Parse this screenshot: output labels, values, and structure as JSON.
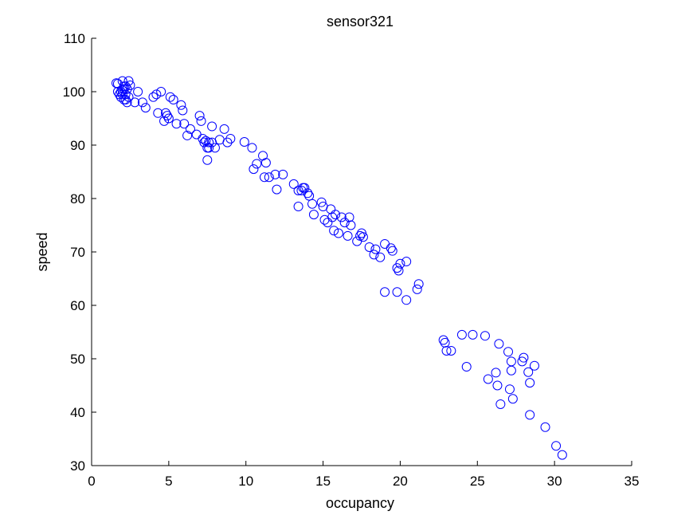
{
  "chart_data": {
    "type": "scatter",
    "title": "sensor321",
    "xlabel": "occupancy",
    "ylabel": "speed",
    "xlim": [
      0,
      35
    ],
    "ylim": [
      30,
      110
    ],
    "xticks": [
      0,
      5,
      10,
      15,
      20,
      25,
      30,
      35
    ],
    "yticks": [
      30,
      40,
      50,
      60,
      70,
      80,
      90,
      100,
      110
    ],
    "grid": false,
    "marker": "open-circle",
    "marker_color": "#0000ff",
    "series": [
      {
        "x": [
          1.6,
          1.7,
          1.9,
          2.0,
          2.1,
          2.2,
          2.3,
          2.4,
          1.8,
          2.0,
          2.2,
          2.5,
          1.9,
          2.1,
          2.3,
          2.0,
          2.2,
          1.7,
          2.4,
          2.1,
          2.8,
          3.0,
          3.3,
          3.5,
          4.0,
          4.3,
          4.5,
          4.8,
          5.0,
          5.1,
          5.5,
          5.8,
          6.0,
          4.2,
          4.7,
          4.9,
          5.3,
          5.9,
          6.2,
          6.4,
          6.8,
          7.0,
          7.2,
          7.4,
          7.6,
          7.8,
          7.1,
          7.5,
          7.5,
          7.6,
          8.0,
          8.3,
          8.6,
          8.8,
          9.0,
          7.3,
          7.8,
          9.9,
          10.4,
          10.5,
          10.7,
          11.1,
          11.2,
          11.3,
          11.5,
          11.9,
          12.0,
          12.4,
          13.1,
          13.4,
          13.6,
          13.7,
          13.8,
          14.0,
          14.1,
          14.3,
          14.4,
          13.4,
          14.9,
          15.0,
          15.1,
          15.3,
          15.5,
          15.6,
          15.7,
          15.8,
          16.0,
          16.2,
          16.4,
          16.6,
          16.7,
          16.8,
          17.2,
          17.4,
          17.5,
          17.6,
          18.0,
          18.3,
          18.4,
          18.7,
          19.0,
          19.4,
          19.5,
          19.8,
          19.9,
          20.0,
          20.4,
          20.4,
          21.1,
          21.2,
          19.0,
          19.8,
          22.8,
          22.9,
          23.0,
          23.3,
          24.0,
          24.3,
          24.7,
          25.5,
          25.7,
          26.2,
          26.3,
          26.4,
          26.5,
          27.0,
          27.1,
          27.2,
          27.2,
          27.3,
          27.9,
          28.0,
          28.3,
          28.4,
          28.4,
          28.7,
          29.4,
          30.1,
          30.5
        ],
        "y": [
          101.6,
          101.5,
          100.0,
          102.0,
          101.0,
          99.5,
          100.5,
          102.0,
          99.5,
          100.2,
          98.5,
          101.2,
          99.0,
          100.5,
          98.0,
          99.5,
          101.0,
          100.0,
          99.0,
          98.5,
          98.0,
          100.0,
          98.0,
          97.0,
          99.0,
          96.0,
          100.0,
          96.0,
          95.0,
          99.0,
          94.0,
          97.5,
          94.0,
          99.5,
          94.5,
          95.5,
          98.5,
          96.5,
          91.8,
          93.0,
          92.0,
          95.5,
          91.2,
          90.8,
          89.5,
          93.5,
          94.5,
          89.5,
          87.2,
          90.5,
          89.5,
          91.0,
          93.0,
          90.5,
          91.2,
          90.5,
          90.5,
          90.6,
          89.5,
          85.5,
          86.5,
          88.0,
          84.0,
          86.7,
          84.0,
          84.5,
          81.7,
          84.5,
          82.7,
          78.5,
          81.5,
          82.0,
          82.0,
          81.0,
          80.5,
          79.0,
          77.0,
          81.5,
          79.3,
          78.5,
          76.0,
          75.5,
          78.0,
          76.5,
          74.0,
          77.0,
          73.5,
          76.5,
          75.5,
          73.0,
          76.5,
          75.0,
          72.0,
          73.0,
          73.5,
          72.8,
          70.9,
          69.5,
          70.5,
          69.0,
          71.5,
          70.7,
          70.2,
          67.0,
          66.5,
          67.8,
          68.2,
          61.0,
          63.0,
          64.0,
          62.5,
          62.5,
          53.5,
          53.0,
          51.5,
          51.5,
          54.5,
          48.5,
          54.5,
          54.3,
          46.2,
          47.4,
          45.0,
          52.8,
          41.5,
          51.3,
          44.3,
          49.5,
          47.8,
          42.5,
          49.5,
          50.2,
          47.5,
          45.5,
          39.5,
          48.7,
          37.2,
          33.7,
          32.0
        ]
      }
    ]
  }
}
